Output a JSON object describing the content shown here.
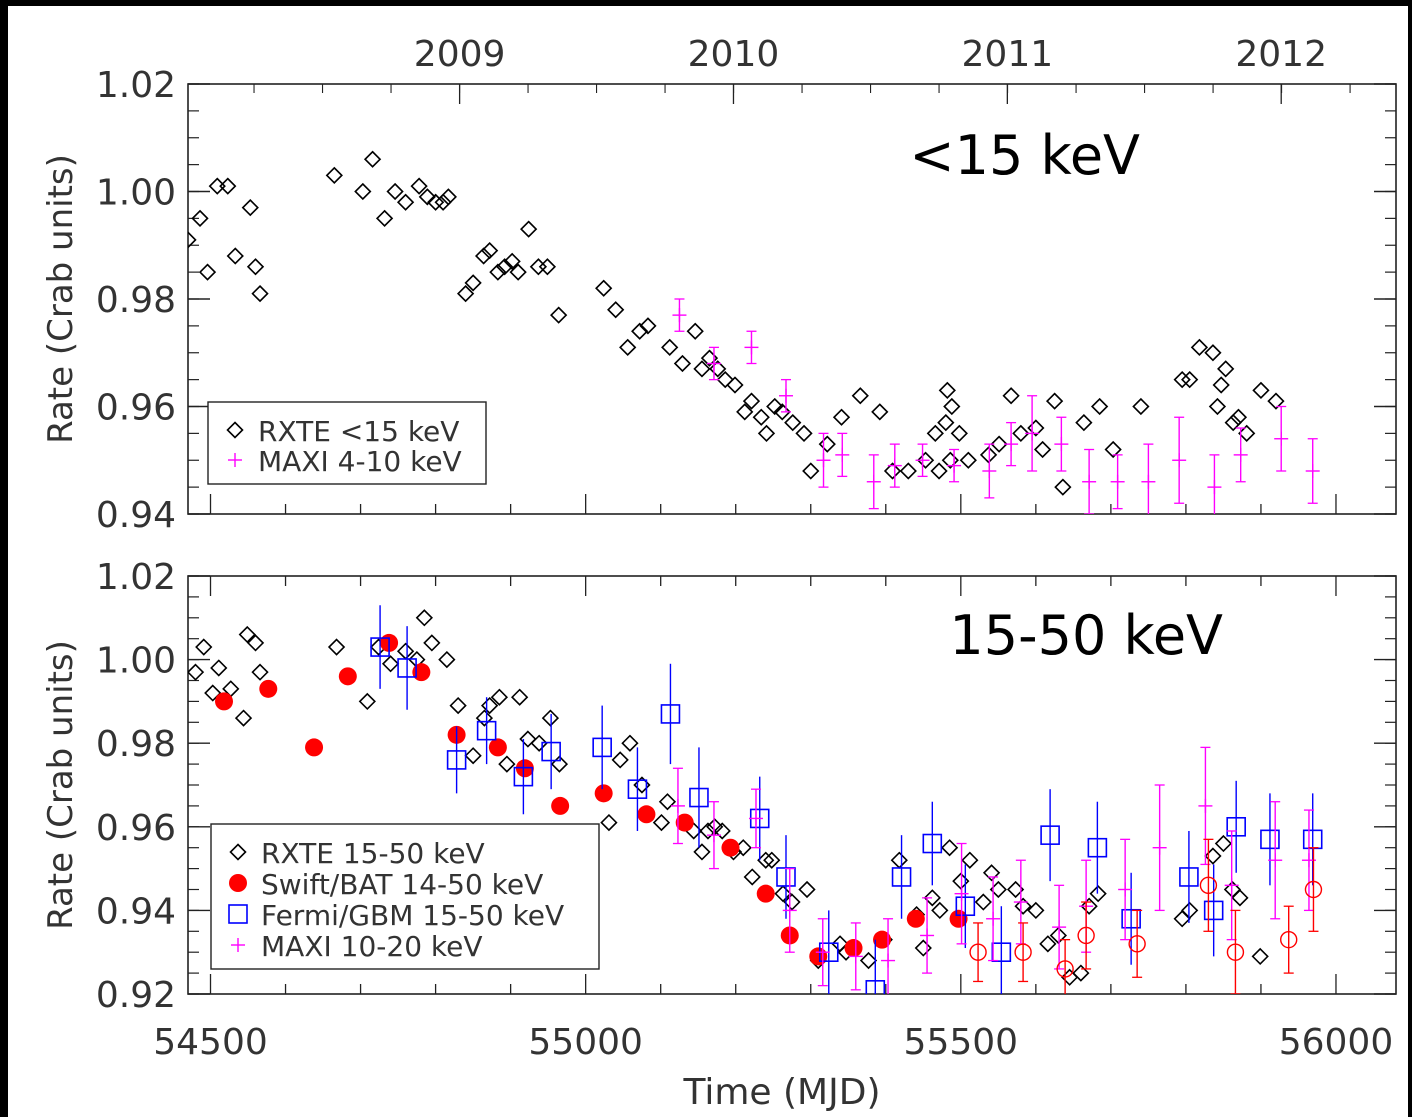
{
  "chart_data": [
    {
      "type": "scatter",
      "title": "",
      "annotation": "<15 keV",
      "xlabel": "",
      "ylabel": "Rate (Crab units)",
      "xlim": [
        54470,
        56080
      ],
      "ylim": [
        0.94,
        1.02
      ],
      "yticks": [
        "0.94",
        "0.96",
        "0.98",
        "1.00",
        "1.02"
      ],
      "top_axis_labels": [
        {
          "x": 54832,
          "label": "2009"
        },
        {
          "x": 55197,
          "label": "2010"
        },
        {
          "x": 55562,
          "label": "2011"
        },
        {
          "x": 55927,
          "label": "2012"
        }
      ],
      "legend_position": "bottom-left",
      "series": [
        {
          "name": "RXTE <15 keV",
          "marker": "diamond",
          "color": "#000000",
          "x": [
            54470,
            54486,
            54496,
            54509,
            54523,
            54533,
            54553,
            54560,
            54566,
            54665,
            54703,
            54716,
            54732,
            54746,
            54760,
            54778,
            54789,
            54800,
            54810,
            54817,
            54840,
            54850,
            54864,
            54872,
            54883,
            54892,
            54902,
            54910,
            54924,
            54937,
            54949,
            54964,
            55024,
            55040,
            55056,
            55072,
            55083,
            55112,
            55129,
            55146,
            55155,
            55165,
            55176,
            55186,
            55199,
            55212,
            55221,
            55234,
            55241,
            55252,
            55262,
            55276,
            55291,
            55300,
            55322,
            55341,
            55366,
            55392,
            55409,
            55430,
            55453,
            55466,
            55471,
            55480,
            55482,
            55486,
            55488,
            55498,
            55510,
            55537,
            55551,
            55567,
            55580,
            55600,
            55609,
            55625,
            55636,
            55664,
            55685,
            55703,
            55740,
            55795,
            55805,
            55818,
            55836,
            55842,
            55847,
            55853,
            55863,
            55870,
            55881,
            55900,
            55920
          ],
          "y": [
            0.991,
            0.995,
            0.985,
            1.001,
            1.001,
            0.988,
            0.997,
            0.986,
            0.981,
            1.003,
            1.0,
            1.006,
            0.995,
            1.0,
            0.998,
            1.001,
            0.999,
            0.998,
            0.998,
            0.999,
            0.981,
            0.983,
            0.988,
            0.989,
            0.985,
            0.986,
            0.987,
            0.985,
            0.993,
            0.986,
            0.986,
            0.977,
            0.982,
            0.978,
            0.971,
            0.974,
            0.975,
            0.971,
            0.968,
            0.974,
            0.967,
            0.969,
            0.967,
            0.965,
            0.964,
            0.959,
            0.961,
            0.958,
            0.955,
            0.96,
            0.959,
            0.957,
            0.955,
            0.948,
            0.953,
            0.958,
            0.962,
            0.959,
            0.948,
            0.948,
            0.95,
            0.955,
            0.948,
            0.957,
            0.963,
            0.95,
            0.96,
            0.955,
            0.95,
            0.951,
            0.953,
            0.962,
            0.955,
            0.956,
            0.952,
            0.961,
            0.945,
            0.957,
            0.96,
            0.952,
            0.96,
            0.965,
            0.965,
            0.971,
            0.97,
            0.96,
            0.964,
            0.967,
            0.957,
            0.958,
            0.955,
            0.963,
            0.961
          ]
        },
        {
          "name": "MAXI 4-10 keV",
          "marker": "plus",
          "color": "#ff00ff",
          "x": [
            55125,
            55171,
            55221,
            55267,
            55317,
            55342,
            55384,
            55412,
            55449,
            55491,
            55538,
            55567,
            55595,
            55634,
            55671,
            55709,
            55750,
            55791,
            55838,
            55873,
            55927,
            55969
          ],
          "y": [
            0.977,
            0.968,
            0.971,
            0.962,
            0.95,
            0.951,
            0.946,
            0.949,
            0.95,
            0.949,
            0.948,
            0.953,
            0.955,
            0.953,
            0.946,
            0.946,
            0.946,
            0.95,
            0.945,
            0.951,
            0.954,
            0.948
          ],
          "yerr": [
            0.003,
            0.003,
            0.003,
            0.003,
            0.005,
            0.004,
            0.005,
            0.004,
            0.003,
            0.003,
            0.005,
            0.004,
            0.007,
            0.005,
            0.006,
            0.005,
            0.007,
            0.008,
            0.006,
            0.005,
            0.006,
            0.006
          ]
        }
      ]
    },
    {
      "type": "scatter",
      "title": "",
      "annotation": "15-50 keV",
      "xlabel": "Time (MJD)",
      "ylabel": "Rate (Crab units)",
      "xlim": [
        54470,
        56080
      ],
      "ylim": [
        0.92,
        1.02
      ],
      "xticks": [
        "54500",
        "55000",
        "55500",
        "56000"
      ],
      "yticks": [
        "0.92",
        "0.94",
        "0.96",
        "0.98",
        "1.00",
        "1.02"
      ],
      "legend_position": "bottom-left",
      "series": [
        {
          "name": "RXTE 15-50 keV",
          "marker": "diamond",
          "color": "#000000",
          "x": [
            54480,
            54491,
            54503,
            54511,
            54527,
            54544,
            54549,
            54560,
            54566,
            54668,
            54709,
            54724,
            54740,
            54760,
            54775,
            54785,
            54795,
            54815,
            54830,
            54850,
            54865,
            54872,
            54885,
            54895,
            54912,
            54923,
            54938,
            54953,
            54965,
            55031,
            55046,
            55059,
            55075,
            55101,
            55109,
            55144,
            55155,
            55163,
            55172,
            55182,
            55197,
            55210,
            55222,
            55240,
            55248,
            55263,
            55275,
            55295,
            55310,
            55339,
            55347,
            55377,
            55398,
            55418,
            55441,
            55450,
            55462,
            55472,
            55485,
            55500,
            55512,
            55530,
            55541,
            55550,
            55573,
            55583,
            55600,
            55616,
            55630,
            55645,
            55660,
            55671,
            55683,
            55795,
            55805,
            55836,
            55850,
            55862,
            55872,
            55899
          ],
          "y": [
            0.997,
            1.003,
            0.992,
            0.998,
            0.993,
            0.986,
            1.006,
            1.004,
            0.997,
            1.003,
            0.99,
            1.003,
            0.999,
            1.002,
            1.0,
            1.01,
            1.004,
            1.0,
            0.989,
            0.977,
            0.986,
            0.989,
            0.991,
            0.975,
            0.991,
            0.981,
            0.98,
            0.986,
            0.975,
            0.961,
            0.976,
            0.98,
            0.97,
            0.961,
            0.966,
            0.959,
            0.954,
            0.959,
            0.96,
            0.959,
            0.954,
            0.955,
            0.948,
            0.952,
            0.952,
            0.944,
            0.942,
            0.945,
            0.928,
            0.932,
            0.93,
            0.928,
            0.933,
            0.952,
            0.939,
            0.931,
            0.943,
            0.94,
            0.955,
            0.947,
            0.952,
            0.942,
            0.949,
            0.945,
            0.945,
            0.941,
            0.94,
            0.932,
            0.934,
            0.924,
            0.925,
            0.941,
            0.944,
            0.938,
            0.94,
            0.953,
            0.956,
            0.945,
            0.943,
            0.929
          ]
        },
        {
          "name": "Swift/BAT 14-50 keV",
          "marker": "filled-circle",
          "color": "#ff0000",
          "x": [
            54518,
            54577,
            54638,
            54683,
            54738,
            54781,
            54828,
            54883,
            54919,
            54966,
            55024,
            55081,
            55132,
            55193,
            55240,
            55272,
            55310,
            55357,
            55395,
            55440,
            55497
          ],
          "y": [
            0.99,
            0.993,
            0.979,
            0.996,
            1.004,
            0.997,
            0.982,
            0.979,
            0.974,
            0.965,
            0.968,
            0.963,
            0.961,
            0.955,
            0.944,
            0.934,
            0.929,
            0.931,
            0.933,
            0.938,
            0.938
          ],
          "yerr": []
        },
        {
          "name": "Fermi/GBM 15-50 keV",
          "marker": "square",
          "color": "#0000ff",
          "x": [
            54726,
            54762,
            54828,
            54868,
            54917,
            54954,
            55022,
            55069,
            55113,
            55151,
            55232,
            55267,
            55324,
            55386,
            55421,
            55462,
            55506,
            55554,
            55619,
            55682,
            55727,
            55804,
            55837,
            55867,
            55912,
            55969
          ],
          "y": [
            1.003,
            0.998,
            0.976,
            0.983,
            0.972,
            0.978,
            0.979,
            0.969,
            0.987,
            0.967,
            0.962,
            0.948,
            0.93,
            0.921,
            0.948,
            0.956,
            0.941,
            0.93,
            0.958,
            0.955,
            0.938,
            0.948,
            0.94,
            0.96,
            0.957,
            0.957
          ],
          "yerr": [
            0.01,
            0.01,
            0.008,
            0.008,
            0.009,
            0.009,
            0.01,
            0.01,
            0.012,
            0.012,
            0.01,
            0.01,
            0.01,
            0.012,
            0.01,
            0.01,
            0.01,
            0.011,
            0.011,
            0.011,
            0.011,
            0.011,
            0.011,
            0.011,
            0.011,
            0.011
          ]
        },
        {
          "name": "MAXI 10-20 keV",
          "marker": "plus",
          "color": "#ff00ff",
          "x": [
            55123,
            55171,
            55227,
            55272,
            55316,
            55360,
            55403,
            55455,
            55501,
            55543,
            55580,
            55631,
            55667,
            55719,
            55765,
            55826,
            55861,
            55919,
            55964
          ],
          "y": [
            0.965,
            0.958,
            0.962,
            0.94,
            0.93,
            0.929,
            0.928,
            0.934,
            0.944,
            0.938,
            0.942,
            0.936,
            0.941,
            0.945,
            0.955,
            0.965,
            0.946,
            0.952,
            0.952
          ],
          "yerr": [
            0.009,
            0.008,
            0.007,
            0.01,
            0.008,
            0.008,
            0.01,
            0.009,
            0.012,
            0.01,
            0.01,
            0.01,
            0.011,
            0.012,
            0.015,
            0.014,
            0.013,
            0.014,
            0.012
          ]
        },
        {
          "marker": "open-circle",
          "color": "#ff0000",
          "x": [
            55523,
            55583,
            55639,
            55667,
            55735,
            55830,
            55866,
            55937,
            55970
          ],
          "y": [
            0.93,
            0.93,
            0.926,
            0.934,
            0.932,
            0.946,
            0.93,
            0.933,
            0.945
          ],
          "yerr": [
            0.007,
            0.007,
            0.007,
            0.008,
            0.008,
            0.011,
            0.01,
            0.008,
            0.01
          ]
        }
      ]
    }
  ]
}
